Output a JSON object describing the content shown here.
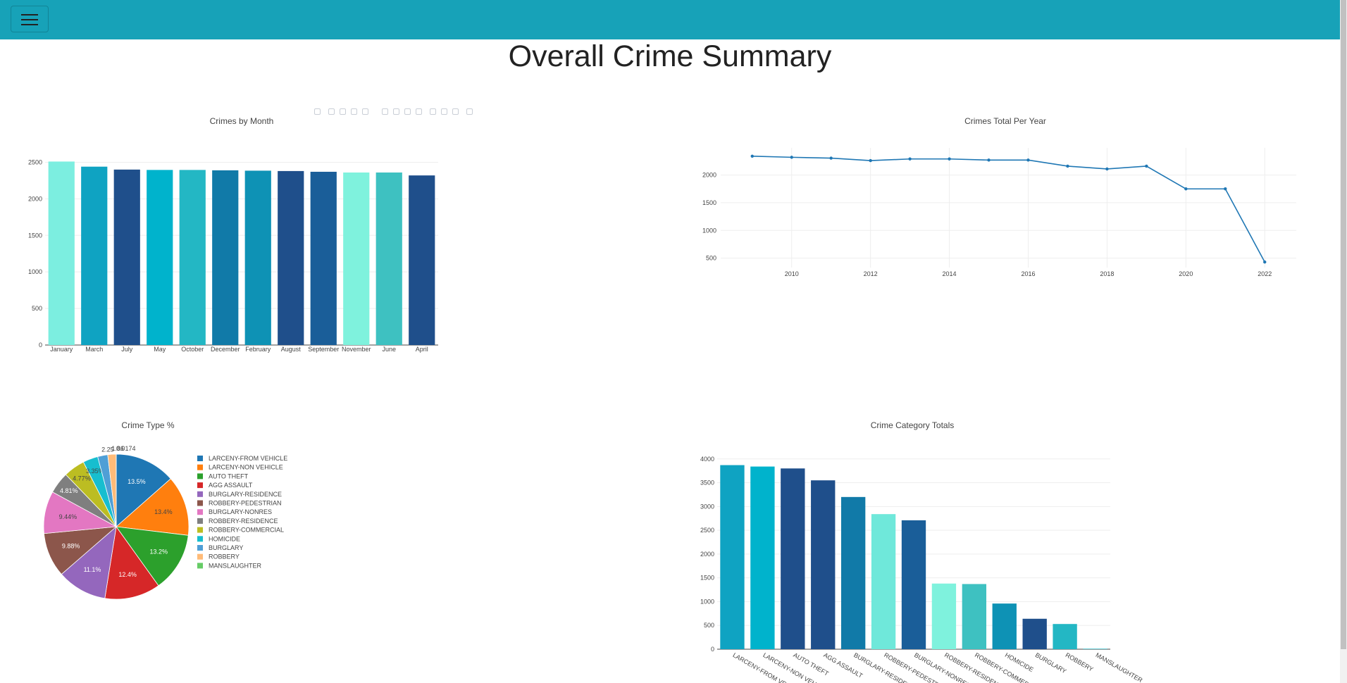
{
  "navbar": {
    "toggle_icon": "hamburger-menu-icon",
    "color": "#17a2b8"
  },
  "page": {
    "title": "Overall Crime Summary"
  },
  "palette": [
    "#0fa3c2",
    "#00b3cc",
    "#1f4f8b",
    "#117aa8",
    "#23b7c4",
    "#17a2b8",
    "#7ff2dd",
    "#3ec1c1",
    "#1a5e99"
  ],
  "chart_data": [
    {
      "type": "bar",
      "title": "Crimes by Month",
      "categories": [
        "January",
        "March",
        "July",
        "May",
        "October",
        "December",
        "February",
        "August",
        "September",
        "November",
        "June",
        "April"
      ],
      "values": [
        2510,
        2440,
        2400,
        2395,
        2395,
        2390,
        2385,
        2380,
        2370,
        2360,
        2360,
        2320
      ],
      "colors": [
        "#7ceee0",
        "#0fa3c2",
        "#1f4f8b",
        "#00b3cc",
        "#23b7c4",
        "#117aa8",
        "#0e92b5",
        "#1f4f8b",
        "#1a5e99",
        "#7ff2dd",
        "#3ec1c1",
        "#1f4f8b"
      ],
      "yticks": [
        0,
        500,
        1000,
        1500,
        2000,
        2500
      ],
      "ylim": [
        0,
        2620
      ],
      "grid": true
    },
    {
      "type": "line",
      "title": "Crimes Total Per Year",
      "x": [
        2009,
        2010,
        2011,
        2012,
        2013,
        2014,
        2015,
        2016,
        2017,
        2018,
        2019,
        2020,
        2021,
        2022
      ],
      "y": [
        2340,
        2320,
        2305,
        2260,
        2290,
        2290,
        2270,
        2270,
        2160,
        2110,
        2160,
        1750,
        1750,
        430
      ],
      "xticks": [
        2010,
        2012,
        2014,
        2016,
        2018,
        2020,
        2022
      ],
      "yticks": [
        500,
        1000,
        1500,
        2000
      ],
      "xlim": [
        2008.2,
        2022.8
      ],
      "ylim": [
        330,
        2490
      ],
      "color": "#1f77b4",
      "grid": true
    },
    {
      "type": "pie",
      "title": "Crime Type %",
      "series": [
        {
          "name": "LARCENY-FROM VEHICLE",
          "value": 13.5,
          "label": "13.5%",
          "color": "#1f77b4",
          "label_color": "#ffffff"
        },
        {
          "name": "LARCENY-NON VEHICLE",
          "value": 13.4,
          "label": "13.4%",
          "color": "#ff7f0e",
          "label_color": "#444444"
        },
        {
          "name": "AUTO THEFT",
          "value": 13.2,
          "label": "13.2%",
          "color": "#2ca02c",
          "label_color": "#ffffff"
        },
        {
          "name": "AGG ASSAULT",
          "value": 12.4,
          "label": "12.4%",
          "color": "#d62728",
          "label_color": "#ffffff"
        },
        {
          "name": "BURGLARY-RESIDENCE",
          "value": 11.1,
          "label": "11.1%",
          "color": "#9467bd",
          "label_color": "#ffffff"
        },
        {
          "name": "ROBBERY-PEDESTRIAN",
          "value": 9.88,
          "label": "9.88%",
          "color": "#8c564b",
          "label_color": "#ffffff"
        },
        {
          "name": "BURGLARY-NONRES",
          "value": 9.44,
          "label": "9.44%",
          "color": "#e377c2",
          "label_color": "#444444"
        },
        {
          "name": "ROBBERY-RESIDENCE",
          "value": 4.81,
          "label": "4.81%",
          "color": "#7f7f7f",
          "label_color": "#ffffff"
        },
        {
          "name": "ROBBERY-COMMERCIAL",
          "value": 4.77,
          "label": "4.77%",
          "color": "#bcbd22",
          "label_color": "#444444"
        },
        {
          "name": "HOMICIDE",
          "value": 3.35,
          "label": "3.35%",
          "color": "#17becf",
          "label_color": "#444444"
        },
        {
          "name": "BURGLARY",
          "value": 2.25,
          "label": "2.25",
          "color": "#4f9fd6",
          "label_color": "#444444"
        },
        {
          "name": "ROBBERY",
          "value": 1.86,
          "label": "1.86",
          "color": "#ffbb78",
          "label_color": "#444444"
        },
        {
          "name": "MANSLAUGHTER",
          "value": 0.0174,
          "label": "0.0174",
          "color": "#66cc66",
          "label_color": "#444444"
        }
      ]
    },
    {
      "type": "bar",
      "title": "Crime Category Totals",
      "categories": [
        "LARCENY-FROM VEHICLE",
        "LARCENY-NON VEHICLE",
        "AUTO THEFT",
        "AGG ASSAULT",
        "BURGLARY-RESIDENCE",
        "ROBBERY-PEDESTRIAN",
        "BURGLARY-NONRES",
        "ROBBERY-RESIDENCE",
        "ROBBERY-COMMERCIAL",
        "HOMICIDE",
        "BURGLARY",
        "ROBBERY",
        "MANSLAUGHTER"
      ],
      "values": [
        3870,
        3840,
        3800,
        3550,
        3200,
        2840,
        2710,
        1380,
        1370,
        960,
        640,
        530,
        10
      ],
      "colors": [
        "#0fa3c2",
        "#00b3cc",
        "#1f4f8b",
        "#1f4f8b",
        "#117aa8",
        "#6fe8da",
        "#1a5e99",
        "#7ff2dd",
        "#3ec1c1",
        "#0e92b5",
        "#1f4f8b",
        "#23b7c4",
        "#23b7c4"
      ],
      "yticks": [
        0,
        500,
        1000,
        1500,
        2000,
        2500,
        3000,
        3500,
        4000
      ],
      "ylim": [
        0,
        4130
      ],
      "grid": true,
      "rotated_labels": true
    }
  ]
}
